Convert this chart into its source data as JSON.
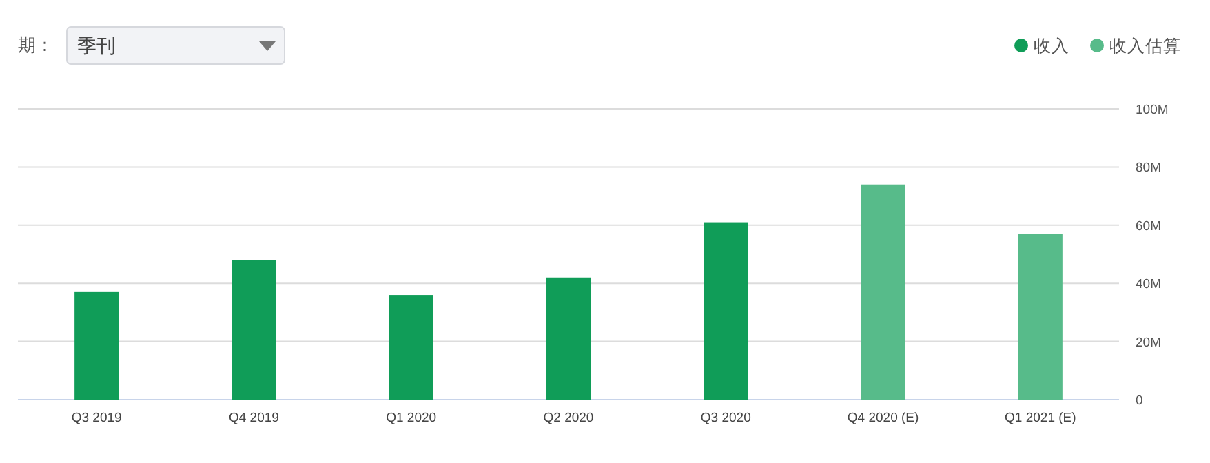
{
  "chart_data": {
    "type": "bar",
    "annotations": [
      "期：",
      "季刊"
    ],
    "categories": [
      "Q3 2019",
      "Q4 2019",
      "Q1 2020",
      "Q2 2020",
      "Q3 2020",
      "Q4 2020 (E)",
      "Q1 2021 (E)"
    ],
    "series": [
      {
        "name": "收入",
        "color": "#109d58",
        "values": [
          37,
          48,
          36,
          42,
          61,
          null,
          null
        ]
      },
      {
        "name": "收入估算",
        "color": "#57bb8a",
        "values": [
          null,
          null,
          null,
          null,
          null,
          74,
          57
        ]
      }
    ],
    "ylim": [
      0,
      100
    ],
    "yticks": [
      0,
      {
        "value": 20,
        "label": "20M"
      },
      {
        "value": 40,
        "label": "40M"
      },
      {
        "value": 60,
        "label": "60M"
      },
      {
        "value": 80,
        "label": "80M"
      },
      {
        "value": 100,
        "label": "100M"
      }
    ],
    "grid": "y",
    "legend": "top right"
  }
}
